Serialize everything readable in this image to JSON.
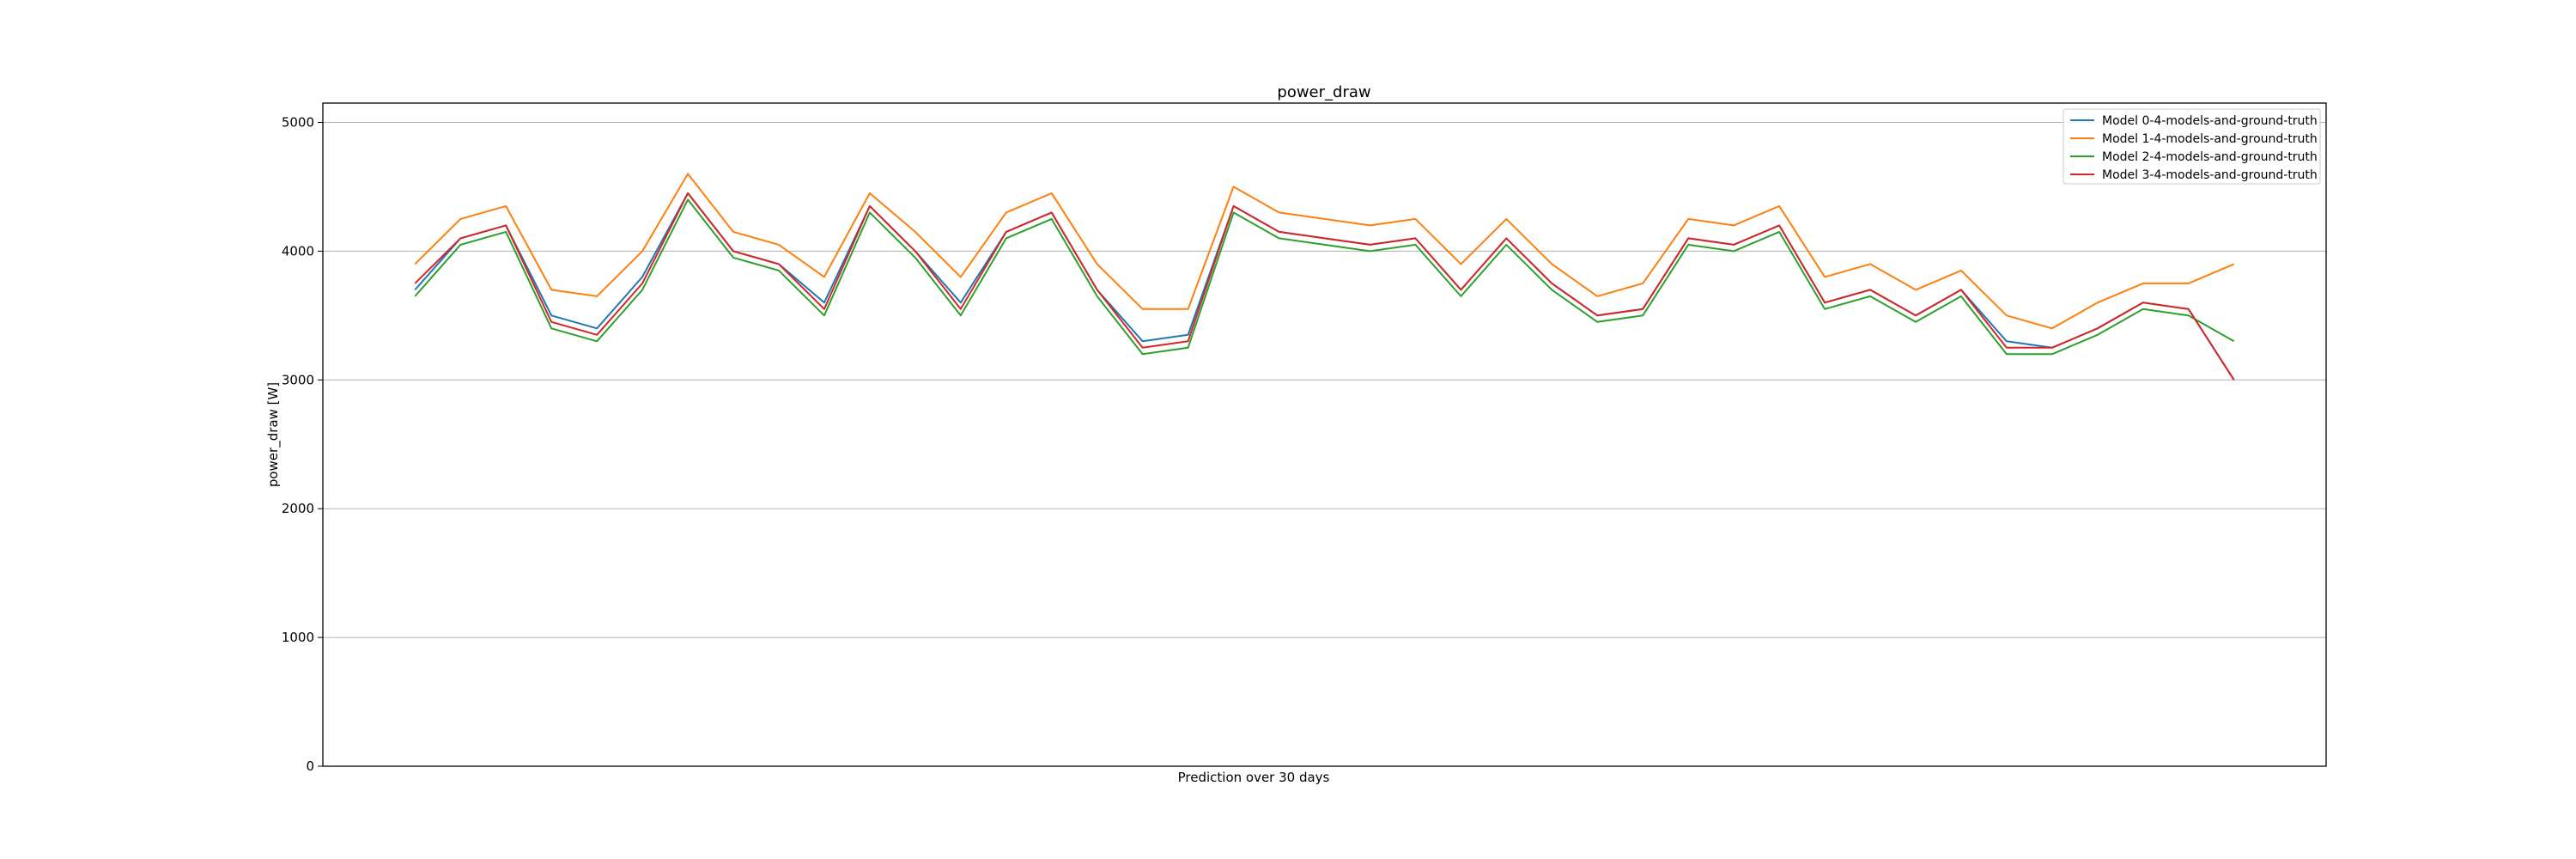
{
  "chart_data": {
    "type": "line",
    "title": "power_draw",
    "xlabel": "Prediction over 30 days",
    "ylabel": "power_draw [W]",
    "ylim": [
      0,
      5150
    ],
    "yticks": [
      0,
      1000,
      2000,
      3000,
      4000,
      5000
    ],
    "grid": "y",
    "legend_position": "top-right",
    "x_domain": [
      0,
      1000
    ],
    "series": [
      {
        "name": "Model 0-4-models-and-ground-truth",
        "color": "#1f77b4",
        "x": [
          0,
          25,
          50,
          75,
          100,
          125,
          150,
          175,
          200,
          225,
          250,
          275,
          300,
          325,
          350,
          375,
          400,
          425,
          450,
          475,
          500,
          525,
          550,
          575,
          600,
          625,
          650,
          675,
          700,
          725,
          750,
          775,
          800,
          825,
          850,
          875,
          900,
          925,
          950,
          975,
          1000
        ],
        "values": [
          3700,
          4100,
          4200,
          3500,
          3400,
          3800,
          4450,
          4000,
          3900,
          3600,
          4350,
          4000,
          3600,
          4150,
          4300,
          3700,
          3300,
          3350,
          4350,
          4150,
          4100,
          4050,
          4100,
          3700,
          4100,
          3750,
          3500,
          3550,
          4100,
          4050,
          4200,
          3600,
          3700,
          3500,
          3700,
          3300,
          3250,
          3400,
          3600,
          3550,
          3000
        ]
      },
      {
        "name": "Model 1-4-models-and-ground-truth",
        "color": "#ff7f0e",
        "x": [
          0,
          25,
          50,
          75,
          100,
          125,
          150,
          175,
          200,
          225,
          250,
          275,
          300,
          325,
          350,
          375,
          400,
          425,
          450,
          475,
          500,
          525,
          550,
          575,
          600,
          625,
          650,
          675,
          700,
          725,
          750,
          775,
          800,
          825,
          850,
          875,
          900,
          925,
          950,
          975,
          1000
        ],
        "values": [
          3900,
          4250,
          4350,
          3700,
          3650,
          4000,
          4600,
          4150,
          4050,
          3800,
          4450,
          4150,
          3800,
          4300,
          4450,
          3900,
          3550,
          3550,
          4500,
          4300,
          4250,
          4200,
          4250,
          3900,
          4250,
          3900,
          3650,
          3750,
          4250,
          4200,
          4350,
          3800,
          3900,
          3700,
          3850,
          3500,
          3400,
          3600,
          3750,
          3750,
          3900
        ]
      },
      {
        "name": "Model 2-4-models-and-ground-truth",
        "color": "#2ca02c",
        "x": [
          0,
          25,
          50,
          75,
          100,
          125,
          150,
          175,
          200,
          225,
          250,
          275,
          300,
          325,
          350,
          375,
          400,
          425,
          450,
          475,
          500,
          525,
          550,
          575,
          600,
          625,
          650,
          675,
          700,
          725,
          750,
          775,
          800,
          825,
          850,
          875,
          900,
          925,
          950,
          975,
          1000
        ],
        "values": [
          3650,
          4050,
          4150,
          3400,
          3300,
          3700,
          4400,
          3950,
          3850,
          3500,
          4300,
          3950,
          3500,
          4100,
          4250,
          3650,
          3200,
          3250,
          4300,
          4100,
          4050,
          4000,
          4050,
          3650,
          4050,
          3700,
          3450,
          3500,
          4050,
          4000,
          4150,
          3550,
          3650,
          3450,
          3650,
          3200,
          3200,
          3350,
          3550,
          3500,
          3300
        ]
      },
      {
        "name": "Model 3-4-models-and-ground-truth",
        "color": "#d62728",
        "x": [
          0,
          25,
          50,
          75,
          100,
          125,
          150,
          175,
          200,
          225,
          250,
          275,
          300,
          325,
          350,
          375,
          400,
          425,
          450,
          475,
          500,
          525,
          550,
          575,
          600,
          625,
          650,
          675,
          700,
          725,
          750,
          775,
          800,
          825,
          850,
          875,
          900,
          925,
          950,
          975,
          1000
        ],
        "values": [
          3750,
          4100,
          4200,
          3450,
          3350,
          3750,
          4450,
          4000,
          3900,
          3550,
          4350,
          4000,
          3550,
          4150,
          4300,
          3700,
          3250,
          3300,
          4350,
          4150,
          4100,
          4050,
          4100,
          3700,
          4100,
          3750,
          3500,
          3550,
          4100,
          4050,
          4200,
          3600,
          3700,
          3500,
          3700,
          3250,
          3250,
          3400,
          3600,
          3550,
          3000
        ]
      }
    ]
  }
}
